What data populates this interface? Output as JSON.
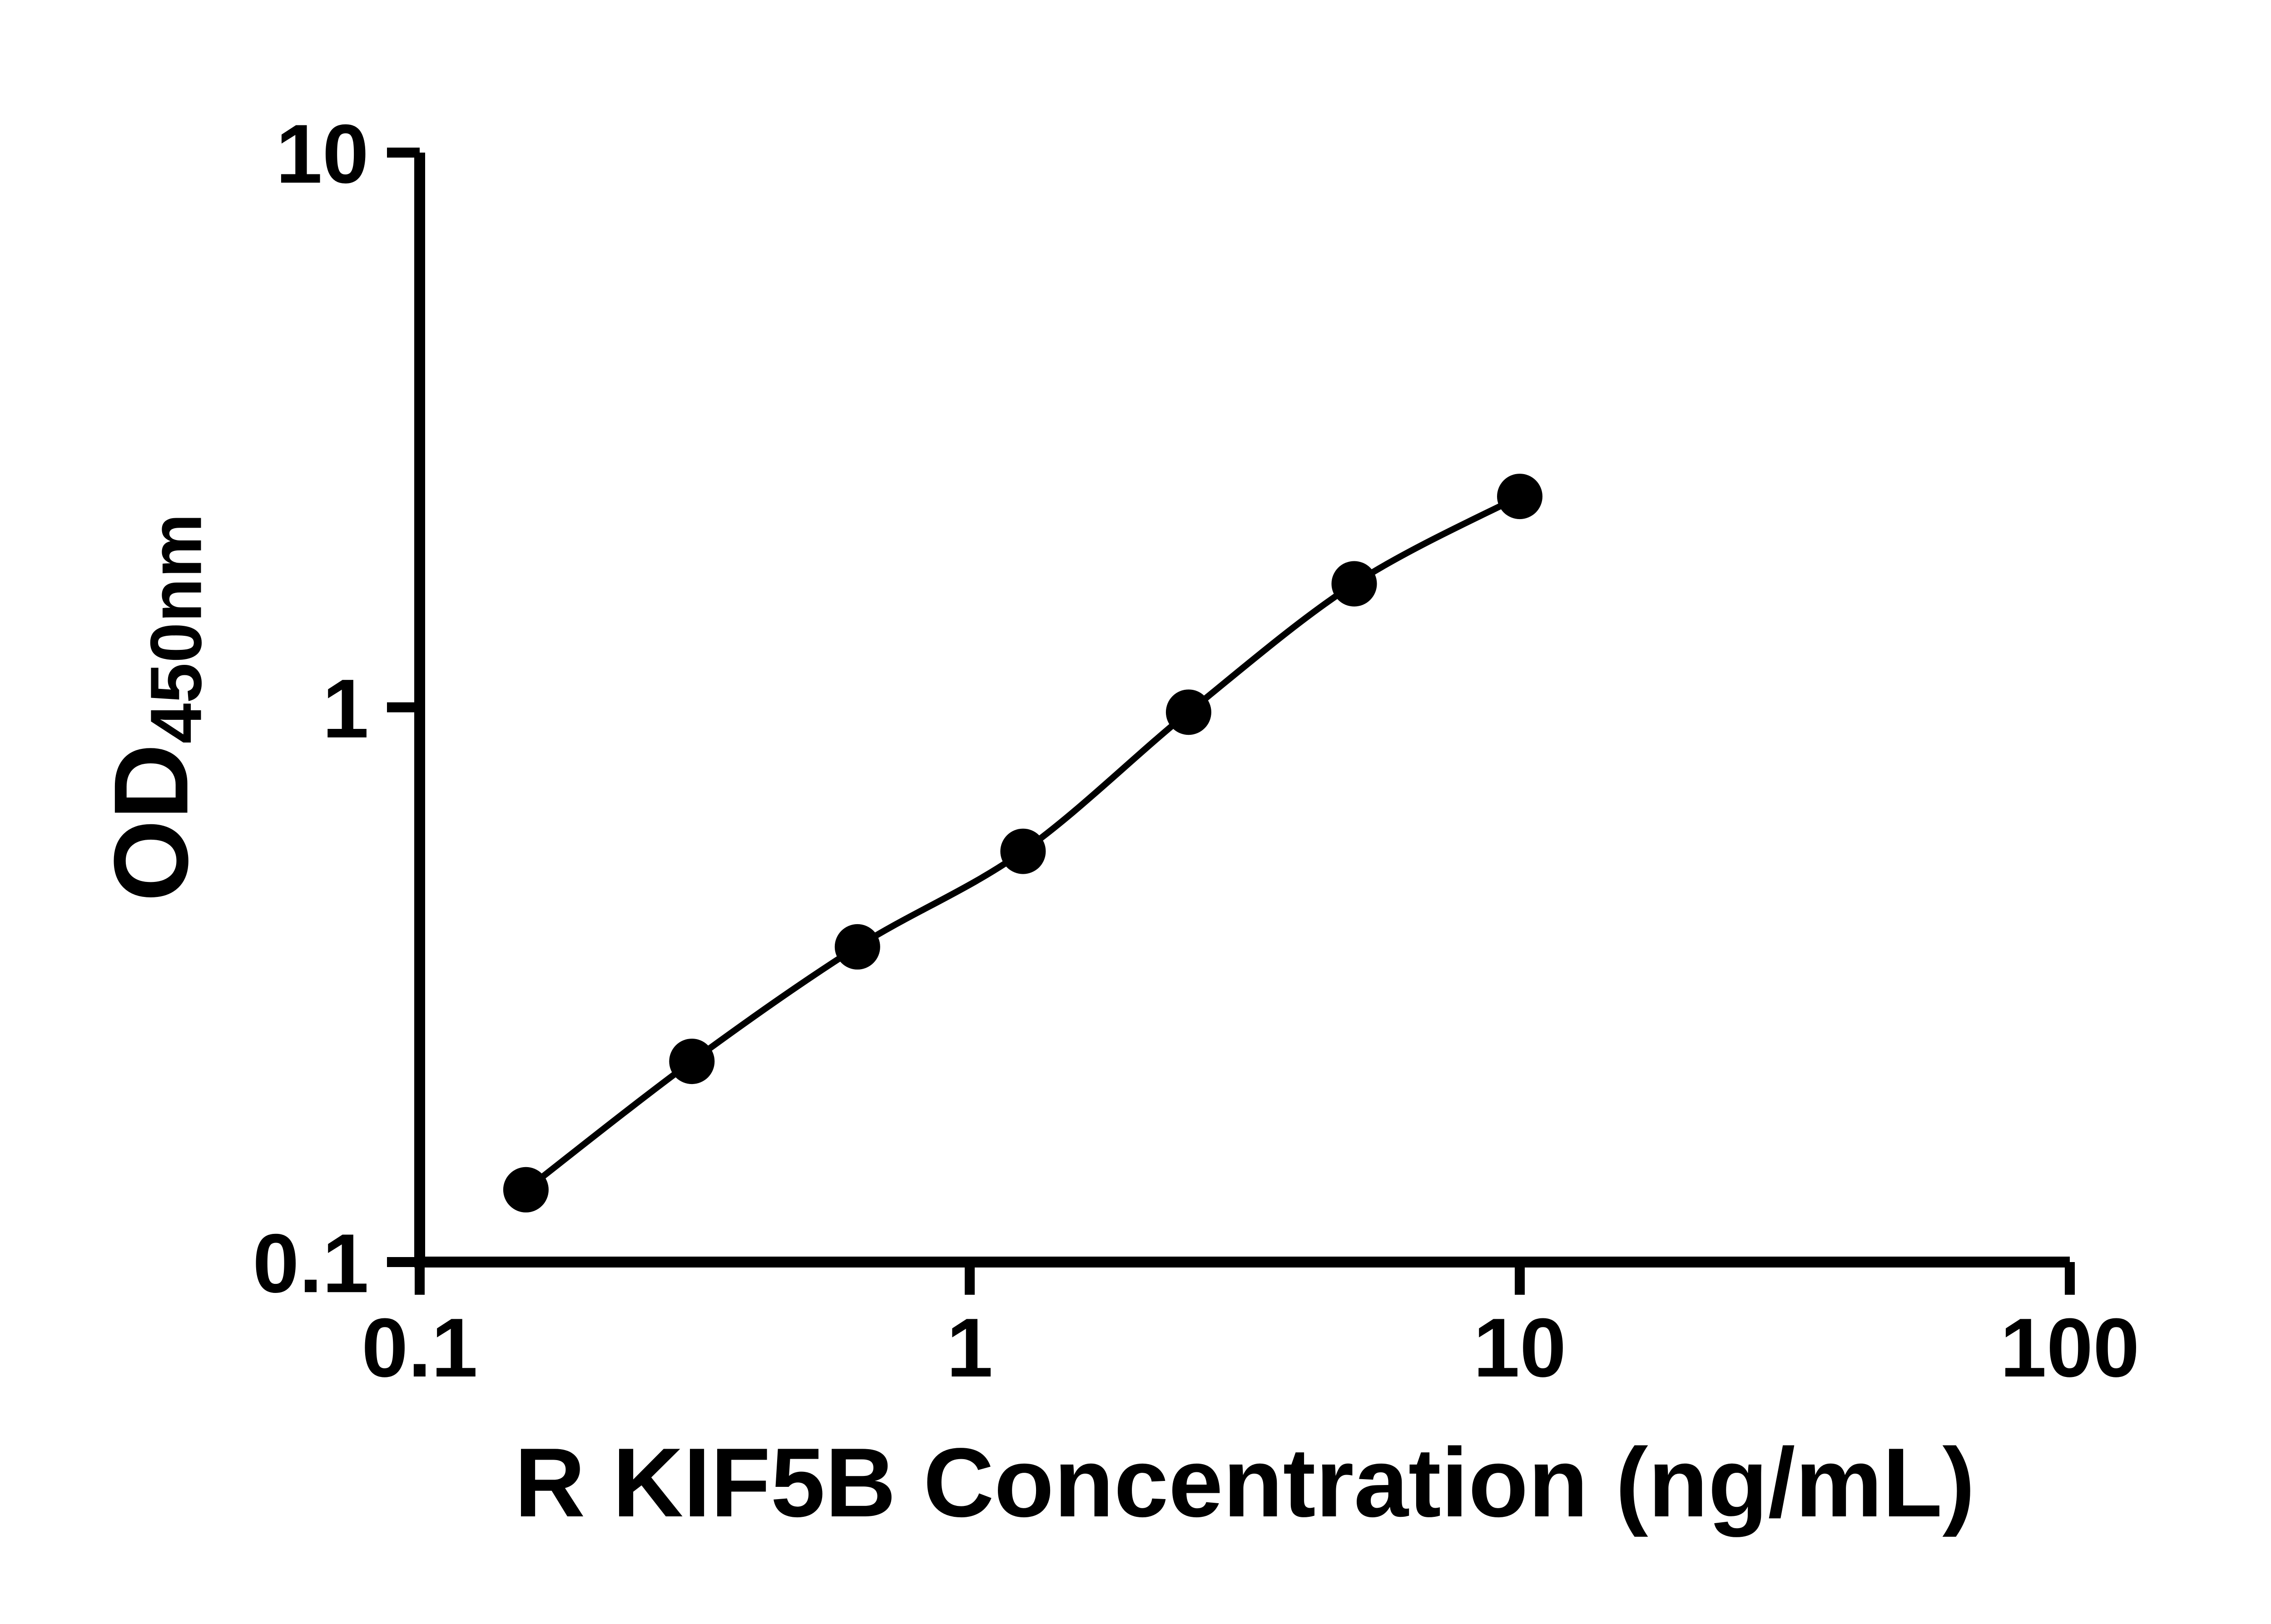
{
  "figure": {
    "background": "#ffffff",
    "ink_color": "#000000"
  },
  "chart": {
    "xlabel": "R KIF5B Concentration (ng/mL)",
    "ylabel_main": "OD",
    "ylabel_sub": "450nm"
  },
  "chart_data": {
    "type": "scatter",
    "title": "",
    "xlabel": "R KIF5B Concentration (ng/mL)",
    "ylabel": "OD450nm",
    "x_scale": "log",
    "y_scale": "log",
    "xlim": [
      0.1,
      100
    ],
    "ylim": [
      0.1,
      10
    ],
    "x_ticks": [
      0.1,
      1,
      10,
      100
    ],
    "y_ticks": [
      0.1,
      1,
      10
    ],
    "grid": false,
    "legend": false,
    "marker_color": "#000000",
    "line_color": "#000000",
    "fit": "smooth standard-curve line through points",
    "points": [
      {
        "x": 0.156,
        "y": 0.135
      },
      {
        "x": 0.3125,
        "y": 0.23
      },
      {
        "x": 0.625,
        "y": 0.37
      },
      {
        "x": 1.25,
        "y": 0.55
      },
      {
        "x": 2.5,
        "y": 0.98
      },
      {
        "x": 5,
        "y": 1.67
      },
      {
        "x": 10,
        "y": 2.4
      }
    ]
  }
}
